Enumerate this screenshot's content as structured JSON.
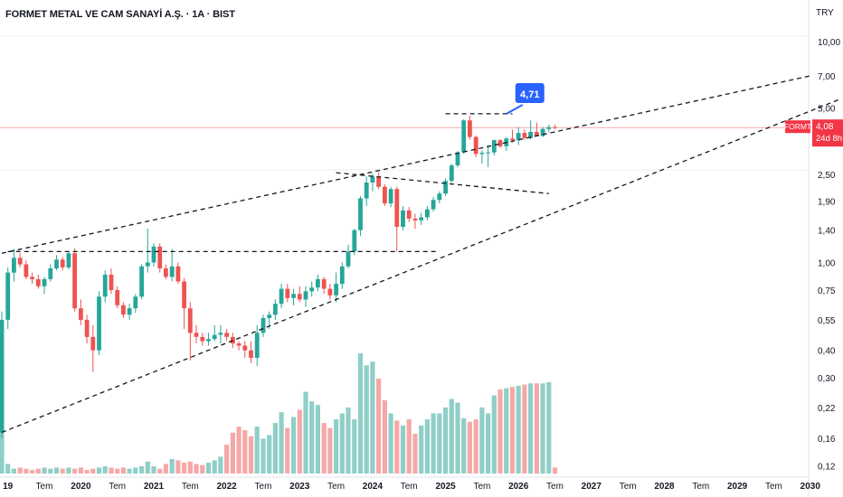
{
  "header": {
    "title": "FORMET METAL VE CAM SANAYİ A.Ş. · 1A · BIST",
    "currency": "TRY"
  },
  "price_tag": {
    "symbol": "FORMT",
    "price": "4,08",
    "countdown": "24d 8h",
    "color": "#f23645"
  },
  "callout": {
    "label": "4,71",
    "color": "#2962ff"
  },
  "colors": {
    "up": "#26a69a",
    "down": "#ef5350",
    "vol_up": "#8fcfc7",
    "vol_down": "#f5a8a8",
    "axis_text": "#131722"
  },
  "chart_data": {
    "type": "candlestick",
    "interval": "1 month",
    "y_scale": "log",
    "ylim": [
      0.115,
      11.2
    ],
    "yticks": [
      "10,00",
      "7,00",
      "5,00",
      "2,50",
      "1,90",
      "1,40",
      "1,00",
      "0,75",
      "0,55",
      "0,40",
      "0,30",
      "0,22",
      "0,16",
      "0,12"
    ],
    "ytick_values": [
      10.0,
      7.0,
      5.0,
      2.5,
      1.9,
      1.4,
      1.0,
      0.75,
      0.55,
      0.4,
      0.3,
      0.22,
      0.16,
      0.12
    ],
    "xticks": [
      "19",
      "Tem",
      "2020",
      "Tem",
      "2021",
      "Tem",
      "2022",
      "Tem",
      "2023",
      "Tem",
      "2024",
      "Tem",
      "2025",
      "Tem",
      "2026",
      "Tem",
      "2027",
      "Tem",
      "2028",
      "Tem",
      "2029",
      "Tem",
      "2030"
    ],
    "xtick_dates": [
      "2019-01",
      "2019-07",
      "2020-01",
      "2020-07",
      "2021-01",
      "2021-07",
      "2022-01",
      "2022-07",
      "2023-01",
      "2023-07",
      "2024-01",
      "2024-07",
      "2025-01",
      "2025-07",
      "2026-01",
      "2026-07",
      "2027-01",
      "2027-07",
      "2028-01",
      "2028-07",
      "2029-01",
      "2029-07",
      "2030-01"
    ],
    "first_candle": "2018-12",
    "last_price": 4.08,
    "candles": [
      [
        0.17,
        0.6,
        0.16,
        0.55
      ],
      [
        0.55,
        0.95,
        0.5,
        0.9
      ],
      [
        0.9,
        1.15,
        0.82,
        1.05
      ],
      [
        1.05,
        1.1,
        0.95,
        0.98
      ],
      [
        0.98,
        1.02,
        0.84,
        0.86
      ],
      [
        0.86,
        0.9,
        0.8,
        0.84
      ],
      [
        0.84,
        0.88,
        0.76,
        0.78
      ],
      [
        0.78,
        0.86,
        0.72,
        0.84
      ],
      [
        0.84,
        0.98,
        0.82,
        0.94
      ],
      [
        0.94,
        1.08,
        0.92,
        1.03
      ],
      [
        1.03,
        1.06,
        0.92,
        0.95
      ],
      [
        0.95,
        1.12,
        0.93,
        1.1
      ],
      [
        1.1,
        1.16,
        0.6,
        0.62
      ],
      [
        0.62,
        0.68,
        0.52,
        0.55
      ],
      [
        0.55,
        0.58,
        0.43,
        0.46
      ],
      [
        0.46,
        0.52,
        0.32,
        0.4
      ],
      [
        0.4,
        0.74,
        0.38,
        0.7
      ],
      [
        0.7,
        0.92,
        0.66,
        0.88
      ],
      [
        0.88,
        0.94,
        0.72,
        0.75
      ],
      [
        0.75,
        0.78,
        0.62,
        0.64
      ],
      [
        0.64,
        0.66,
        0.56,
        0.58
      ],
      [
        0.58,
        0.65,
        0.55,
        0.62
      ],
      [
        0.62,
        0.72,
        0.59,
        0.7
      ],
      [
        0.7,
        0.98,
        0.68,
        0.96
      ],
      [
        0.96,
        1.42,
        0.9,
        1.0
      ],
      [
        1.0,
        1.22,
        0.96,
        1.18
      ],
      [
        1.18,
        1.22,
        0.9,
        0.94
      ],
      [
        0.94,
        0.98,
        0.84,
        0.86
      ],
      [
        0.86,
        1.15,
        0.82,
        0.96
      ],
      [
        0.96,
        1.0,
        0.8,
        0.82
      ],
      [
        0.82,
        0.85,
        0.5,
        0.62
      ],
      [
        0.62,
        0.66,
        0.36,
        0.48
      ],
      [
        0.48,
        0.52,
        0.43,
        0.46
      ],
      [
        0.46,
        0.48,
        0.42,
        0.44
      ],
      [
        0.44,
        0.48,
        0.42,
        0.45
      ],
      [
        0.45,
        0.52,
        0.44,
        0.47
      ],
      [
        0.47,
        0.52,
        0.43,
        0.48
      ],
      [
        0.48,
        0.5,
        0.44,
        0.46
      ],
      [
        0.46,
        0.48,
        0.41,
        0.43
      ],
      [
        0.43,
        0.44,
        0.4,
        0.42
      ],
      [
        0.42,
        0.44,
        0.37,
        0.4
      ],
      [
        0.4,
        0.44,
        0.35,
        0.37
      ],
      [
        0.37,
        0.52,
        0.34,
        0.48
      ],
      [
        0.48,
        0.58,
        0.46,
        0.56
      ],
      [
        0.56,
        0.6,
        0.5,
        0.58
      ],
      [
        0.58,
        0.68,
        0.55,
        0.65
      ],
      [
        0.65,
        0.8,
        0.62,
        0.76
      ],
      [
        0.76,
        0.8,
        0.66,
        0.69
      ],
      [
        0.69,
        0.76,
        0.64,
        0.72
      ],
      [
        0.72,
        0.78,
        0.66,
        0.68
      ],
      [
        0.68,
        0.78,
        0.63,
        0.74
      ],
      [
        0.74,
        0.82,
        0.7,
        0.77
      ],
      [
        0.77,
        0.88,
        0.74,
        0.84
      ],
      [
        0.84,
        0.86,
        0.72,
        0.76
      ],
      [
        0.76,
        0.8,
        0.68,
        0.71
      ],
      [
        0.71,
        0.9,
        0.66,
        0.8
      ],
      [
        0.8,
        1.0,
        0.76,
        0.96
      ],
      [
        0.96,
        1.2,
        0.94,
        1.12
      ],
      [
        1.12,
        1.42,
        1.08,
        1.4
      ],
      [
        1.4,
        2.0,
        1.32,
        1.95
      ],
      [
        1.95,
        2.45,
        1.8,
        2.3
      ],
      [
        2.3,
        2.52,
        2.1,
        2.45
      ],
      [
        2.45,
        2.56,
        2.15,
        2.2
      ],
      [
        2.2,
        2.26,
        1.8,
        1.85
      ],
      [
        1.85,
        2.2,
        1.78,
        2.15
      ],
      [
        2.15,
        2.2,
        1.12,
        1.45
      ],
      [
        1.45,
        1.8,
        1.4,
        1.72
      ],
      [
        1.72,
        1.78,
        1.52,
        1.58
      ],
      [
        1.58,
        1.66,
        1.42,
        1.55
      ],
      [
        1.55,
        1.68,
        1.48,
        1.6
      ],
      [
        1.6,
        1.8,
        1.55,
        1.74
      ],
      [
        1.74,
        1.98,
        1.7,
        1.92
      ],
      [
        1.92,
        2.1,
        1.85,
        2.05
      ],
      [
        2.05,
        2.4,
        2.0,
        2.34
      ],
      [
        2.34,
        2.8,
        2.3,
        2.75
      ],
      [
        2.75,
        3.2,
        2.7,
        3.15
      ],
      [
        3.15,
        4.45,
        3.1,
        4.4
      ],
      [
        4.4,
        4.62,
        3.6,
        3.7
      ],
      [
        3.7,
        3.76,
        3.0,
        3.1
      ],
      [
        3.1,
        3.22,
        2.8,
        3.14
      ],
      [
        3.14,
        3.4,
        2.7,
        3.15
      ],
      [
        3.15,
        3.6,
        3.05,
        3.58
      ],
      [
        3.58,
        3.62,
        3.3,
        3.36
      ],
      [
        3.36,
        3.7,
        3.2,
        3.64
      ],
      [
        3.64,
        4.0,
        3.5,
        3.58
      ],
      [
        3.58,
        4.1,
        3.4,
        3.86
      ],
      [
        3.86,
        4.0,
        3.6,
        3.66
      ],
      [
        3.66,
        4.4,
        3.6,
        3.9
      ],
      [
        3.9,
        4.3,
        3.72,
        3.74
      ],
      [
        3.74,
        4.1,
        3.7,
        4.02
      ],
      [
        4.02,
        4.2,
        3.88,
        4.1
      ],
      [
        4.1,
        4.2,
        4.0,
        4.08
      ]
    ],
    "volume_relative": [
      0.97,
      0.08,
      0.04,
      0.05,
      0.04,
      0.03,
      0.04,
      0.05,
      0.04,
      0.05,
      0.04,
      0.05,
      0.04,
      0.05,
      0.03,
      0.04,
      0.05,
      0.06,
      0.05,
      0.04,
      0.05,
      0.04,
      0.05,
      0.06,
      0.1,
      0.06,
      0.04,
      0.08,
      0.12,
      0.11,
      0.09,
      0.1,
      0.08,
      0.07,
      0.09,
      0.11,
      0.14,
      0.24,
      0.34,
      0.39,
      0.36,
      0.31,
      0.39,
      0.29,
      0.32,
      0.42,
      0.51,
      0.38,
      0.47,
      0.53,
      0.68,
      0.6,
      0.57,
      0.42,
      0.38,
      0.45,
      0.5,
      0.55,
      0.45,
      1.0,
      0.9,
      0.93,
      0.79,
      0.61,
      0.5,
      0.44,
      0.4,
      0.45,
      0.33,
      0.4,
      0.45,
      0.5,
      0.5,
      0.55,
      0.62,
      0.59,
      0.46,
      0.43,
      0.45,
      0.55,
      0.5,
      0.65,
      0.7,
      0.71,
      0.72,
      0.73,
      0.74,
      0.75,
      0.75,
      0.75,
      0.76,
      0.05
    ]
  },
  "trendlines": [
    {
      "label": "upper channel line",
      "from": [
        "2018-12",
        1.1
      ],
      "to": [
        "2030-01",
        7.0
      ]
    },
    {
      "label": "lower channel line",
      "from": [
        "2018-12",
        0.17
      ],
      "to": [
        "2030-06",
        5.5
      ]
    },
    {
      "label": "horizontal resistance",
      "from": [
        "2019-01",
        1.12
      ],
      "to": [
        "2024-12",
        1.12
      ]
    },
    {
      "label": "triangle upper",
      "from": [
        "2023-07",
        2.55
      ],
      "to": [
        "2026-06",
        2.05
      ]
    },
    {
      "label": "recent flag top",
      "from": [
        "2025-01",
        4.71
      ],
      "to": [
        "2025-12",
        4.71
      ]
    }
  ]
}
